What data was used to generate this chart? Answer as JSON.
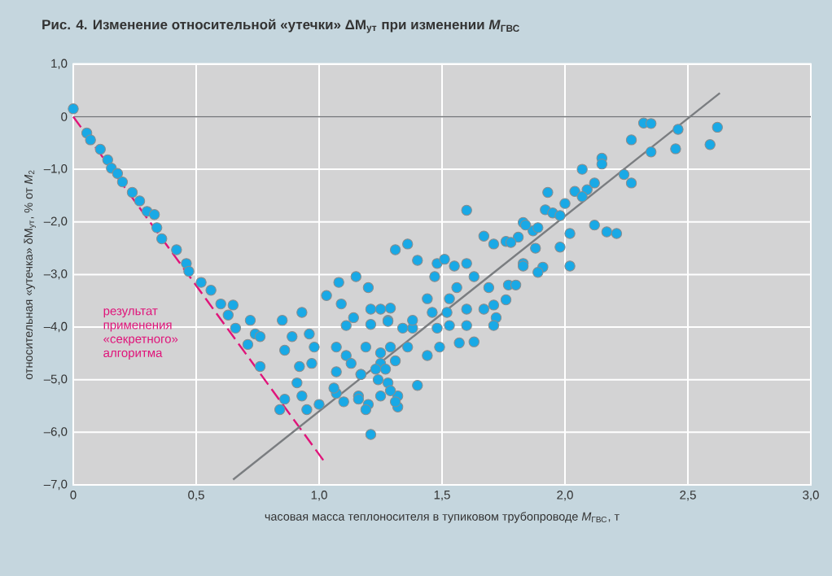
{
  "chart_data": {
    "type": "scatter",
    "title": "Рис. 4. Изменение относительной «утечки» ΔM$_{ут}$ при изменении *M*$_{ГВС}$",
    "xlabel": "часовая масса теплоносителя в тупиковом трубопроводе *M*$_{ГВС}$, т",
    "ylabel": "относительная «утечка» δM$_{ут}$, % от *M*$_{2}$",
    "xlim": [
      0,
      3.0
    ],
    "ylim": [
      -7.0,
      1.0
    ],
    "xticks": [
      {
        "value": 0,
        "label": "0"
      },
      {
        "value": 0.5,
        "label": "0,5"
      },
      {
        "value": 1.0,
        "label": "1,0"
      },
      {
        "value": 1.5,
        "label": "1,5"
      },
      {
        "value": 2.0,
        "label": "2,0"
      },
      {
        "value": 2.5,
        "label": "2,5"
      },
      {
        "value": 3.0,
        "label": "3,0"
      }
    ],
    "yticks": [
      {
        "value": -7,
        "label": "–7,0"
      },
      {
        "value": -6,
        "label": "–6,0"
      },
      {
        "value": -5,
        "label": "–5,0"
      },
      {
        "value": -4,
        "label": "–4,0"
      },
      {
        "value": -3,
        "label": "–3,0"
      },
      {
        "value": -2,
        "label": "–2,0"
      },
      {
        "value": -1,
        "label": "–1,0"
      },
      {
        "value": 0,
        "label": "0"
      },
      {
        "value": 1,
        "label": "1,0"
      }
    ],
    "grid": true,
    "ref_lines": [
      {
        "axis": "y",
        "value": 0,
        "color": "#6f7275"
      }
    ],
    "series": [
      {
        "marker": "circle",
        "color": "#19a9e6",
        "x": [
          0.0,
          0.055,
          0.07,
          0.11,
          0.14,
          0.155,
          0.18,
          0.2,
          0.24,
          0.27,
          0.3,
          0.33,
          0.34,
          0.36,
          0.42,
          0.46,
          0.47,
          0.52,
          0.56,
          0.6,
          0.65,
          0.63,
          0.66,
          0.72,
          0.74,
          0.71,
          0.76,
          0.76,
          0.85,
          0.89,
          0.86,
          0.93,
          0.96,
          0.98,
          0.92,
          0.97,
          0.91,
          0.86,
          0.84,
          0.95,
          1.0,
          1.03,
          1.08,
          1.09,
          1.15,
          1.2,
          1.11,
          1.14,
          1.07,
          1.11,
          1.17,
          1.07,
          1.16,
          1.2,
          1.21,
          1.25,
          1.28,
          1.31,
          1.36,
          1.4,
          1.25,
          1.28,
          1.32,
          1.32,
          1.38,
          1.6,
          1.48,
          1.51,
          1.55,
          1.6,
          1.67,
          1.71,
          1.76,
          1.83,
          1.87,
          1.83,
          1.47,
          1.56,
          1.63,
          1.69,
          1.77,
          1.8,
          1.44,
          1.53,
          1.6,
          1.67,
          1.72,
          1.71,
          1.21,
          1.29,
          1.21,
          1.28,
          1.34,
          1.38,
          1.48,
          1.53,
          1.6,
          1.63,
          1.49,
          1.44,
          1.36,
          1.29,
          1.25,
          1.31,
          1.19,
          1.13,
          1.07,
          1.17,
          1.23,
          1.27,
          1.24,
          1.29,
          1.31,
          1.25,
          1.19,
          1.4,
          1.16,
          1.1,
          1.06,
          0.93,
          1.46,
          1.52,
          2.32,
          2.35,
          2.46,
          2.62,
          2.59,
          2.45,
          2.35,
          2.27,
          2.15,
          2.15,
          2.07,
          2.24,
          2.27,
          2.12,
          2.09,
          2.04,
          2.07,
          1.93,
          2.0,
          1.92,
          1.95,
          1.98,
          2.12,
          2.17,
          2.21,
          2.02,
          1.98,
          2.02,
          1.88,
          1.91,
          1.89,
          1.83,
          1.84,
          1.89,
          1.81,
          1.78,
          1.76,
          1.71,
          1.57
        ],
        "values": [
          0.15,
          -0.31,
          -0.44,
          -0.62,
          -0.82,
          -0.98,
          -1.08,
          -1.24,
          -1.44,
          -1.6,
          -1.8,
          -1.86,
          -2.11,
          -2.32,
          -2.53,
          -2.79,
          -2.94,
          -3.15,
          -3.3,
          -3.56,
          -3.58,
          -3.77,
          -4.02,
          -3.87,
          -4.13,
          -4.33,
          -4.18,
          -4.75,
          -3.87,
          -4.18,
          -4.44,
          -3.72,
          -4.13,
          -4.38,
          -4.75,
          -4.69,
          -5.06,
          -5.37,
          -5.57,
          -5.57,
          -5.47,
          -3.4,
          -3.15,
          -3.56,
          -3.04,
          -3.25,
          -3.97,
          -3.82,
          -4.38,
          -4.54,
          -4.9,
          -5.26,
          -5.31,
          -5.47,
          -6.04,
          -3.66,
          -3.87,
          -2.53,
          -2.42,
          -2.73,
          -4.69,
          -5.06,
          -5.31,
          -5.52,
          -4.02,
          -1.78,
          -2.79,
          -2.71,
          -2.84,
          -2.79,
          -2.27,
          -2.42,
          -2.37,
          -2.01,
          -2.17,
          -2.79,
          -3.04,
          -3.25,
          -3.04,
          -3.25,
          -3.2,
          -3.2,
          -3.46,
          -3.46,
          -3.66,
          -3.66,
          -3.82,
          -3.97,
          -3.66,
          -3.64,
          -3.95,
          -3.89,
          -4.02,
          -3.87,
          -4.02,
          -3.97,
          -3.97,
          -4.28,
          -4.38,
          -4.54,
          -4.38,
          -4.38,
          -4.49,
          -4.64,
          -4.38,
          -4.69,
          -4.85,
          -4.9,
          -4.8,
          -4.8,
          -5.0,
          -5.21,
          -5.42,
          -5.31,
          -5.57,
          -5.11,
          -5.37,
          -5.42,
          -5.16,
          -5.31,
          -3.72,
          -3.72,
          -0.12,
          -0.13,
          -0.24,
          -0.2,
          -0.53,
          -0.61,
          -0.67,
          -0.44,
          -0.79,
          -0.9,
          -1.0,
          -1.1,
          -1.26,
          -1.26,
          -1.39,
          -1.42,
          -1.52,
          -1.44,
          -1.65,
          -1.77,
          -1.83,
          -1.88,
          -2.06,
          -2.19,
          -2.22,
          -2.22,
          -2.48,
          -2.84,
          -2.5,
          -2.86,
          -2.96,
          -2.84,
          -2.06,
          -2.11,
          -2.29,
          -2.39,
          -3.48,
          -3.58,
          -4.3
        ]
      },
      {
        "type": "line",
        "color": "#e0147a",
        "line_style": "dashed",
        "marker": "none",
        "name": "результат применения «секретного» алгоритма",
        "x": [
          0,
          1.02
        ],
        "values": [
          0,
          -6.55
        ]
      },
      {
        "type": "line",
        "color": "#7a7d80",
        "line_style": "solid",
        "marker": "none",
        "x": [
          0.65,
          2.63
        ],
        "values": [
          -6.9,
          0.45
        ]
      }
    ]
  }
}
